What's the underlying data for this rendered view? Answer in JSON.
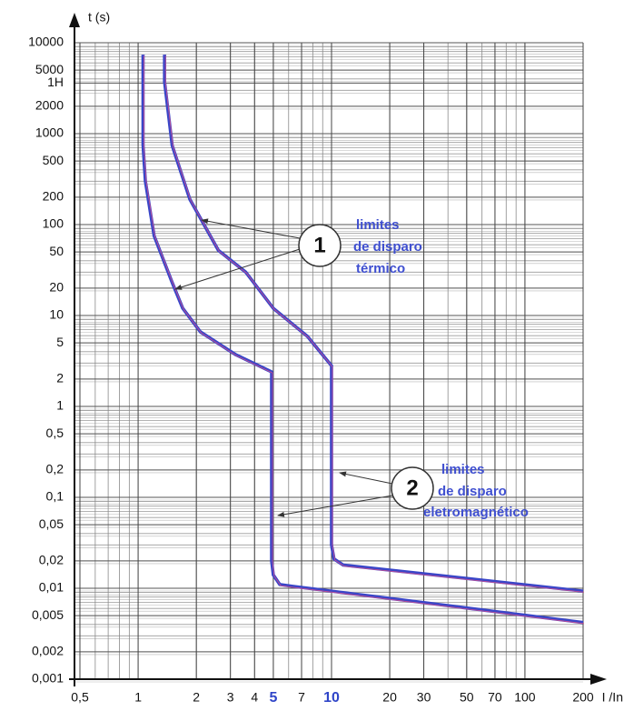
{
  "chart_data": {
    "type": "line",
    "y_label": "t (s)",
    "x_label": "I /In",
    "log_x": true,
    "log_y": true,
    "grid": true,
    "minor_grid": true,
    "xlim": [
      0.5,
      200
    ],
    "ylim": [
      0.001,
      10000
    ],
    "xticks": [
      {
        "value": 0.5,
        "label": "0,5"
      },
      1,
      2,
      3,
      4,
      5,
      7,
      10,
      20,
      30,
      50,
      70,
      100,
      200
    ],
    "emphasized_xticks": [
      5,
      10
    ],
    "emphasis_color": "#2f45c8",
    "yticks": [
      10000,
      5000,
      {
        "value": 3600,
        "label": "1H"
      },
      2000,
      1000,
      500,
      200,
      100,
      50,
      20,
      10,
      5,
      2,
      1,
      {
        "value": 0.5,
        "label": "0,5"
      },
      {
        "value": 0.2,
        "label": "0,2"
      },
      {
        "value": 0.1,
        "label": "0,1"
      },
      {
        "value": 0.05,
        "label": "0,05"
      },
      {
        "value": 0.02,
        "label": "0,02"
      },
      {
        "value": 0.01,
        "label": "0,01"
      },
      {
        "value": 0.005,
        "label": "0,005"
      },
      {
        "value": 0.002,
        "label": "0,002"
      },
      {
        "value": 0.001,
        "label": "0,001"
      }
    ],
    "underline_color": "#e0508a",
    "series": [
      {
        "color": "#3a46c8",
        "x": [
          1.06,
          1.06,
          1.09,
          1.21,
          1.5,
          1.7,
          2.1,
          3.2,
          4.9,
          4.9,
          5.0,
          5.4,
          6.3,
          200
        ],
        "values": [
          7400,
          750,
          300,
          75,
          23,
          12,
          6.6,
          3.7,
          2.4,
          0.02,
          0.014,
          0.011,
          0.0105,
          0.0042
        ]
      },
      {
        "color": "#3a46c8",
        "x": [
          1.37,
          1.37,
          1.5,
          1.85,
          2.6,
          3.6,
          5,
          7.5,
          10,
          10,
          10.3,
          11.5,
          200
        ],
        "values": [
          7400,
          3700,
          740,
          190,
          52,
          30,
          12,
          5.9,
          2.8,
          0.03,
          0.021,
          0.018,
          0.0093
        ]
      }
    ],
    "annotations": [
      {
        "label": "1",
        "text": [
          "limites",
          "de disparo",
          "térmico"
        ]
      },
      {
        "label": "2",
        "text": [
          "limites",
          "de disparo",
          "eletromagnético"
        ]
      }
    ]
  }
}
